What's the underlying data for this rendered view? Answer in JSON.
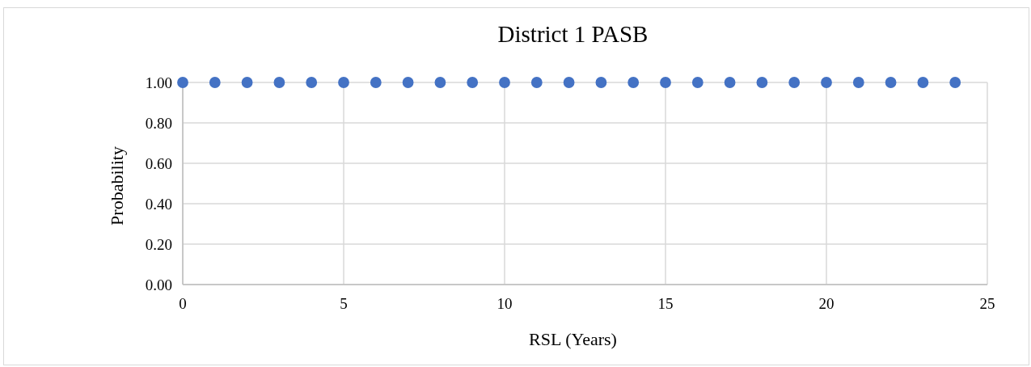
{
  "chart_data": {
    "type": "scatter",
    "title": "District 1 PASB",
    "xlabel": "RSL (Years)",
    "ylabel": "Probability",
    "x": [
      0,
      1,
      2,
      3,
      4,
      5,
      6,
      7,
      8,
      9,
      10,
      11,
      12,
      13,
      14,
      15,
      16,
      17,
      18,
      19,
      20,
      21,
      22,
      23,
      24
    ],
    "series": [
      {
        "color": "#4472c4",
        "values": [
          1,
          1,
          1,
          1,
          1,
          1,
          1,
          1,
          1,
          1,
          1,
          1,
          1,
          1,
          1,
          1,
          1,
          1,
          1,
          1,
          1,
          1,
          1,
          1,
          1
        ]
      }
    ],
    "xlim": [
      0,
      25
    ],
    "xticks": [
      0,
      5,
      10,
      15,
      20,
      25
    ],
    "ylim": [
      0,
      1
    ],
    "yticks": [
      {
        "value": 0,
        "label": "0.00"
      },
      {
        "value": 0.2,
        "label": "0.20"
      },
      {
        "value": 0.4,
        "label": "0.40"
      },
      {
        "value": 0.6,
        "label": "0.60"
      },
      {
        "value": 0.8,
        "label": "0.80"
      },
      {
        "value": 1,
        "label": "1.00"
      }
    ],
    "grid": true,
    "marker": "circle"
  }
}
